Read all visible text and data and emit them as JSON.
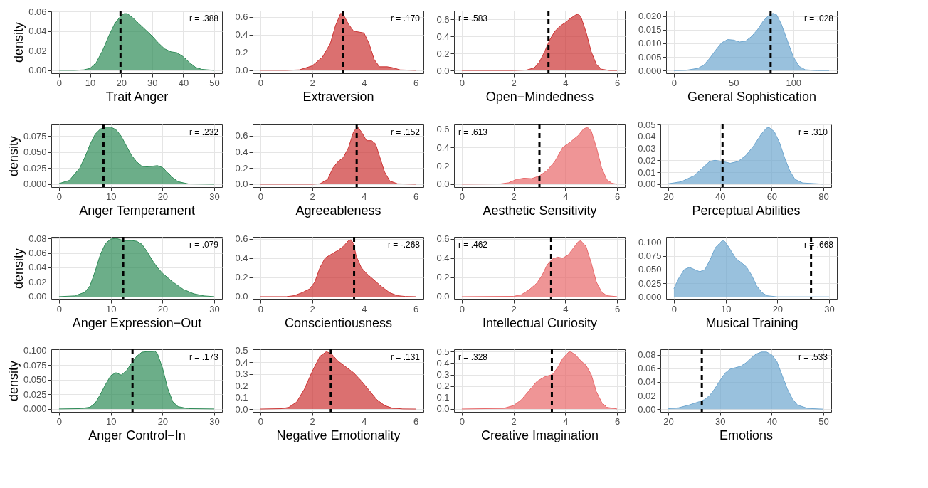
{
  "chart_data": [
    {
      "type": "area",
      "xlabel": "Trait Anger",
      "ylabel": "density",
      "color": "#2e8b57",
      "grid": true,
      "annotations": [
        "r = .388"
      ],
      "ref_lines": [
        {
          "axis": "x",
          "value": 19.8,
          "line_style": "dashed",
          "color": "#000000"
        }
      ],
      "xlim": [
        -2.5,
        52.5
      ],
      "xticks": [
        0,
        10,
        20,
        30,
        40,
        50
      ],
      "ylim": [
        -0.003,
        0.061
      ],
      "yticks": [
        {
          "value": 0,
          "label": "0.00"
        },
        {
          "value": 0.02,
          "label": "0.02"
        },
        {
          "value": 0.04,
          "label": "0.04"
        },
        {
          "value": 0.06,
          "label": "0.06"
        }
      ],
      "x": [
        0,
        5,
        8,
        10,
        12,
        14,
        16,
        18,
        20,
        21,
        22,
        24,
        26,
        28,
        30,
        32,
        34,
        36,
        38,
        40,
        42,
        44,
        46,
        50
      ],
      "values": [
        0,
        0,
        0.0005,
        0.002,
        0.008,
        0.02,
        0.035,
        0.048,
        0.056,
        0.058,
        0.058,
        0.053,
        0.047,
        0.041,
        0.035,
        0.028,
        0.022,
        0.019,
        0.018,
        0.014,
        0.008,
        0.003,
        0.001,
        0
      ]
    },
    {
      "type": "area",
      "xlabel": "Extraversion",
      "color": "#cc3333",
      "grid": true,
      "annotations": [
        "r = .170"
      ],
      "ref_lines": [
        {
          "axis": "x",
          "value": 3.2,
          "line_style": "dashed",
          "color": "#000000"
        }
      ],
      "xlim": [
        -0.3,
        6.3
      ],
      "xticks": [
        0,
        2,
        4,
        6
      ],
      "ylim": [
        -0.033,
        0.67
      ],
      "yticks": [
        {
          "value": 0,
          "label": "0.0"
        },
        {
          "value": 0.2,
          "label": "0.2"
        },
        {
          "value": 0.4,
          "label": "0.4"
        },
        {
          "value": 0.6,
          "label": "0.6"
        }
      ],
      "x": [
        0,
        1,
        1.5,
        2,
        2.4,
        2.7,
        2.9,
        3.1,
        3.2,
        3.4,
        3.6,
        3.8,
        4.0,
        4.2,
        4.4,
        4.6,
        4.9,
        5.1,
        5.4,
        6
      ],
      "values": [
        0,
        0,
        0.005,
        0.05,
        0.15,
        0.3,
        0.5,
        0.64,
        0.63,
        0.52,
        0.44,
        0.43,
        0.42,
        0.3,
        0.12,
        0.04,
        0.04,
        0.03,
        0.005,
        0
      ]
    },
    {
      "type": "area",
      "xlabel": "Open−Mindedness",
      "color": "#cc3333",
      "grid": true,
      "annotations": [
        "r = .583"
      ],
      "ref_lines": [
        {
          "axis": "x",
          "value": 3.35,
          "line_style": "dashed",
          "color": "#000000"
        }
      ],
      "xlim": [
        -0.3,
        6.3
      ],
      "xticks": [
        0,
        2,
        4,
        6
      ],
      "ylim": [
        -0.033,
        0.7
      ],
      "yticks": [
        {
          "value": 0,
          "label": "0.0"
        },
        {
          "value": 0.2,
          "label": "0.2"
        },
        {
          "value": 0.4,
          "label": "0.4"
        },
        {
          "value": 0.6,
          "label": "0.6"
        }
      ],
      "x": [
        0,
        2,
        2.5,
        2.8,
        3.0,
        3.2,
        3.4,
        3.6,
        3.8,
        4.0,
        4.2,
        4.4,
        4.5,
        4.6,
        4.8,
        5.0,
        5.2,
        5.4,
        5.7,
        6
      ],
      "values": [
        0,
        0,
        0.005,
        0.03,
        0.1,
        0.22,
        0.36,
        0.46,
        0.52,
        0.56,
        0.61,
        0.65,
        0.66,
        0.63,
        0.45,
        0.22,
        0.07,
        0.015,
        0,
        0
      ]
    },
    {
      "type": "area",
      "xlabel": "General Sophistication",
      "color": "#6ea6cf",
      "grid": true,
      "annotations": [
        "r = .028"
      ],
      "ref_lines": [
        {
          "axis": "x",
          "value": 81,
          "line_style": "dashed",
          "color": "#000000"
        }
      ],
      "xlim": [
        -6.5,
        136.5
      ],
      "xticks": [
        0,
        50,
        100
      ],
      "ylim": [
        -0.001,
        0.022
      ],
      "yticks": [
        {
          "value": 0,
          "label": "0.000"
        },
        {
          "value": 0.005,
          "label": "0.005"
        },
        {
          "value": 0.01,
          "label": "0.010"
        },
        {
          "value": 0.015,
          "label": "0.015"
        },
        {
          "value": 0.02,
          "label": "0.020"
        }
      ],
      "x": [
        0,
        10,
        20,
        25,
        30,
        35,
        40,
        45,
        50,
        55,
        60,
        65,
        70,
        75,
        80,
        83,
        86,
        90,
        95,
        100,
        105,
        110,
        120,
        130
      ],
      "values": [
        0,
        0.0001,
        0.0008,
        0.002,
        0.0045,
        0.0075,
        0.0102,
        0.0114,
        0.0112,
        0.0105,
        0.0108,
        0.0125,
        0.015,
        0.0183,
        0.0205,
        0.021,
        0.0205,
        0.017,
        0.011,
        0.005,
        0.0015,
        0.0003,
        0,
        0
      ]
    },
    {
      "type": "area",
      "xlabel": "Anger Temperament",
      "ylabel": "density",
      "color": "#2e8b57",
      "grid": true,
      "annotations": [
        "r = .232"
      ],
      "ref_lines": [
        {
          "axis": "x",
          "value": 8.6,
          "line_style": "dashed",
          "color": "#000000"
        }
      ],
      "xlim": [
        -1.5,
        31.5
      ],
      "xticks": [
        0,
        10,
        20,
        30
      ],
      "ylim": [
        -0.0045,
        0.093
      ],
      "yticks": [
        {
          "value": 0,
          "label": "0.000"
        },
        {
          "value": 0.025,
          "label": "0.025"
        },
        {
          "value": 0.05,
          "label": "0.050"
        },
        {
          "value": 0.075,
          "label": "0.075"
        }
      ],
      "x": [
        0,
        2,
        4,
        5,
        6,
        7,
        8,
        9,
        10,
        11,
        12,
        13,
        14,
        15,
        16,
        17,
        18,
        19,
        20,
        21,
        22,
        23,
        25,
        30
      ],
      "values": [
        0.001,
        0.006,
        0.025,
        0.042,
        0.062,
        0.078,
        0.086,
        0.089,
        0.089,
        0.085,
        0.075,
        0.06,
        0.045,
        0.035,
        0.028,
        0.027,
        0.028,
        0.029,
        0.026,
        0.018,
        0.01,
        0.004,
        0.0005,
        0
      ]
    },
    {
      "type": "area",
      "xlabel": "Agreeableness",
      "color": "#cc3333",
      "grid": true,
      "annotations": [
        "r = .152"
      ],
      "ref_lines": [
        {
          "axis": "x",
          "value": 3.72,
          "line_style": "dashed",
          "color": "#000000"
        }
      ],
      "xlim": [
        -0.3,
        6.3
      ],
      "xticks": [
        0,
        2,
        4,
        6
      ],
      "ylim": [
        -0.036,
        0.74
      ],
      "yticks": [
        {
          "value": 0,
          "label": "0.0"
        },
        {
          "value": 0.2,
          "label": "0.2"
        },
        {
          "value": 0.4,
          "label": "0.4"
        },
        {
          "value": 0.6,
          "label": "0.6"
        }
      ],
      "x": [
        0,
        2,
        2.3,
        2.6,
        2.8,
        3.0,
        3.2,
        3.4,
        3.6,
        3.75,
        3.9,
        4.1,
        4.3,
        4.45,
        4.6,
        4.8,
        5.0,
        5.3,
        6
      ],
      "values": [
        0,
        0,
        0.005,
        0.06,
        0.2,
        0.28,
        0.33,
        0.45,
        0.65,
        0.71,
        0.65,
        0.54,
        0.54,
        0.5,
        0.35,
        0.15,
        0.04,
        0.005,
        0
      ]
    },
    {
      "type": "area",
      "xlabel": "Aesthetic Sensitivity",
      "color": "#e8686a",
      "grid": true,
      "annotations": [
        "r = .613"
      ],
      "ref_lines": [
        {
          "axis": "x",
          "value": 3.0,
          "line_style": "dashed",
          "color": "#000000"
        }
      ],
      "xlim": [
        -0.3,
        6.3
      ],
      "xticks": [
        0,
        2,
        4,
        6
      ],
      "ylim": [
        -0.032,
        0.65
      ],
      "yticks": [
        {
          "value": 0,
          "label": "0.0"
        },
        {
          "value": 0.2,
          "label": "0.2"
        },
        {
          "value": 0.4,
          "label": "0.4"
        },
        {
          "value": 0.6,
          "label": "0.6"
        }
      ],
      "x": [
        0,
        1.5,
        1.8,
        2.1,
        2.4,
        2.7,
        3.0,
        3.3,
        3.6,
        3.9,
        4.2,
        4.5,
        4.7,
        4.85,
        5.0,
        5.2,
        5.4,
        5.6,
        5.8,
        6
      ],
      "values": [
        0,
        0.003,
        0.015,
        0.05,
        0.065,
        0.06,
        0.09,
        0.15,
        0.25,
        0.4,
        0.46,
        0.53,
        0.6,
        0.62,
        0.58,
        0.4,
        0.18,
        0.05,
        0.01,
        0
      ]
    },
    {
      "type": "area",
      "xlabel": "Perceptual Abilities",
      "color": "#6ea6cf",
      "grid": true,
      "annotations": [
        "r = .310"
      ],
      "ref_lines": [
        {
          "axis": "x",
          "value": 41,
          "line_style": "dashed",
          "color": "#000000"
        }
      ],
      "xlim": [
        17,
        83
      ],
      "xticks": [
        20,
        40,
        60,
        80
      ],
      "ylim": [
        -0.0025,
        0.05
      ],
      "yticks": [
        {
          "value": 0,
          "label": "0.00"
        },
        {
          "value": 0.01,
          "label": "0.01"
        },
        {
          "value": 0.02,
          "label": "0.02"
        },
        {
          "value": 0.03,
          "label": "0.03"
        },
        {
          "value": 0.04,
          "label": "0.04"
        },
        {
          "value": 0.05,
          "label": "0.05"
        }
      ],
      "x": [
        20,
        25,
        30,
        33,
        36,
        38,
        41,
        44,
        47,
        50,
        53,
        56,
        58,
        59,
        61,
        63,
        65,
        67,
        69,
        72,
        80
      ],
      "values": [
        0.0003,
        0.002,
        0.007,
        0.013,
        0.019,
        0.02,
        0.019,
        0.0175,
        0.019,
        0.024,
        0.032,
        0.042,
        0.047,
        0.0475,
        0.044,
        0.035,
        0.022,
        0.011,
        0.004,
        0.001,
        0
      ]
    },
    {
      "type": "area",
      "xlabel": "Anger Expression−Out",
      "ylabel": "density",
      "color": "#2e8b57",
      "grid": true,
      "annotations": [
        "r = .079"
      ],
      "ref_lines": [
        {
          "axis": "x",
          "value": 12.4,
          "line_style": "dashed",
          "color": "#000000"
        }
      ],
      "xlim": [
        -1.5,
        31.5
      ],
      "xticks": [
        0,
        10,
        20,
        30
      ],
      "ylim": [
        -0.004,
        0.082
      ],
      "yticks": [
        {
          "value": 0,
          "label": "0.00"
        },
        {
          "value": 0.02,
          "label": "0.02"
        },
        {
          "value": 0.04,
          "label": "0.04"
        },
        {
          "value": 0.06,
          "label": "0.06"
        },
        {
          "value": 0.08,
          "label": "0.08"
        }
      ],
      "x": [
        0,
        3,
        5,
        6,
        7,
        8,
        9,
        10,
        11,
        12,
        13,
        14,
        15,
        16,
        17,
        18,
        19,
        20,
        22,
        24,
        26,
        28,
        30
      ],
      "values": [
        0,
        0.001,
        0.006,
        0.015,
        0.035,
        0.058,
        0.073,
        0.079,
        0.08,
        0.078,
        0.077,
        0.077,
        0.076,
        0.072,
        0.062,
        0.05,
        0.04,
        0.032,
        0.02,
        0.01,
        0.004,
        0.001,
        0
      ]
    },
    {
      "type": "area",
      "xlabel": "Conscientiousness",
      "color": "#cc3333",
      "grid": true,
      "annotations": [
        "r = -.268"
      ],
      "ref_lines": [
        {
          "axis": "x",
          "value": 3.62,
          "line_style": "dashed",
          "color": "#000000"
        }
      ],
      "xlim": [
        -0.3,
        6.3
      ],
      "xticks": [
        0,
        2,
        4,
        6
      ],
      "ylim": [
        -0.03,
        0.62
      ],
      "yticks": [
        {
          "value": 0,
          "label": "0.0"
        },
        {
          "value": 0.2,
          "label": "0.2"
        },
        {
          "value": 0.4,
          "label": "0.4"
        },
        {
          "value": 0.6,
          "label": "0.6"
        }
      ],
      "x": [
        0,
        1,
        1.3,
        1.6,
        1.9,
        2.1,
        2.3,
        2.5,
        2.8,
        3.0,
        3.2,
        3.4,
        3.5,
        3.6,
        3.7,
        3.9,
        4.1,
        4.4,
        4.7,
        5.0,
        5.3,
        5.6,
        6
      ],
      "values": [
        0,
        0,
        0.01,
        0.04,
        0.08,
        0.15,
        0.3,
        0.4,
        0.45,
        0.48,
        0.52,
        0.58,
        0.59,
        0.55,
        0.42,
        0.3,
        0.24,
        0.17,
        0.1,
        0.04,
        0.01,
        0.002,
        0
      ]
    },
    {
      "type": "area",
      "xlabel": "Intellectual Curiosity",
      "color": "#e8686a",
      "grid": true,
      "annotations": [
        "r = .462"
      ],
      "ref_lines": [
        {
          "axis": "x",
          "value": 3.45,
          "line_style": "dashed",
          "color": "#000000"
        }
      ],
      "xlim": [
        -0.3,
        6.3
      ],
      "xticks": [
        0,
        2,
        4,
        6
      ],
      "ylim": [
        -0.03,
        0.62
      ],
      "yticks": [
        {
          "value": 0,
          "label": "0.0"
        },
        {
          "value": 0.2,
          "label": "0.2"
        },
        {
          "value": 0.4,
          "label": "0.4"
        },
        {
          "value": 0.6,
          "label": "0.6"
        }
      ],
      "x": [
        0,
        2,
        2.3,
        2.6,
        2.9,
        3.1,
        3.3,
        3.5,
        3.7,
        3.9,
        4.1,
        4.3,
        4.5,
        4.6,
        4.8,
        5.0,
        5.2,
        5.4,
        5.6,
        6
      ],
      "values": [
        0,
        0.003,
        0.02,
        0.07,
        0.14,
        0.22,
        0.33,
        0.39,
        0.41,
        0.4,
        0.43,
        0.5,
        0.57,
        0.58,
        0.52,
        0.35,
        0.15,
        0.05,
        0.01,
        0
      ]
    },
    {
      "type": "area",
      "xlabel": "Musical Training",
      "color": "#6ea6cf",
      "grid": true,
      "annotations": [
        "r = .668"
      ],
      "ref_lines": [
        {
          "axis": "x",
          "value": 26.5,
          "line_style": "dashed",
          "color": "#000000"
        }
      ],
      "xlim": [
        -1.5,
        31.5
      ],
      "xticks": [
        0,
        10,
        20,
        30
      ],
      "ylim": [
        -0.005,
        0.11
      ],
      "yticks": [
        {
          "value": 0,
          "label": "0.000"
        },
        {
          "value": 0.025,
          "label": "0.025"
        },
        {
          "value": 0.05,
          "label": "0.050"
        },
        {
          "value": 0.075,
          "label": "0.075"
        },
        {
          "value": 0.1,
          "label": "0.100"
        }
      ],
      "x": [
        0,
        1,
        2,
        3,
        4,
        5,
        6,
        7,
        8,
        9,
        9.5,
        10,
        11,
        12,
        13,
        14,
        15,
        16,
        17,
        18,
        20,
        30
      ],
      "values": [
        0.015,
        0.035,
        0.05,
        0.054,
        0.05,
        0.046,
        0.05,
        0.068,
        0.09,
        0.1,
        0.104,
        0.1,
        0.085,
        0.07,
        0.063,
        0.055,
        0.04,
        0.02,
        0.008,
        0.002,
        0,
        0
      ]
    },
    {
      "type": "area",
      "xlabel": "Anger Control−In",
      "ylabel": "density",
      "color": "#2e8b57",
      "grid": true,
      "annotations": [
        "r = .173"
      ],
      "ref_lines": [
        {
          "axis": "x",
          "value": 14.2,
          "line_style": "dashed",
          "color": "#000000"
        }
      ],
      "xlim": [
        -1.5,
        31.5
      ],
      "xticks": [
        0,
        10,
        20,
        30
      ],
      "ylim": [
        -0.005,
        0.102
      ],
      "yticks": [
        {
          "value": 0,
          "label": "0.000"
        },
        {
          "value": 0.025,
          "label": "0.025"
        },
        {
          "value": 0.05,
          "label": "0.050"
        },
        {
          "value": 0.075,
          "label": "0.075"
        },
        {
          "value": 0.1,
          "label": "0.100"
        }
      ],
      "x": [
        0,
        4,
        6,
        7,
        8,
        9,
        10,
        11,
        12,
        13,
        14,
        15,
        16,
        17,
        18,
        18.5,
        19,
        20,
        21,
        22,
        23,
        25,
        30
      ],
      "values": [
        0,
        0.0005,
        0.003,
        0.01,
        0.025,
        0.042,
        0.057,
        0.062,
        0.058,
        0.065,
        0.078,
        0.09,
        0.097,
        0.098,
        0.098,
        0.099,
        0.095,
        0.07,
        0.035,
        0.012,
        0.004,
        0.0005,
        0
      ]
    },
    {
      "type": "area",
      "xlabel": "Negative Emotionality",
      "color": "#cc3333",
      "grid": true,
      "annotations": [
        "r = .131"
      ],
      "ref_lines": [
        {
          "axis": "x",
          "value": 2.72,
          "line_style": "dashed",
          "color": "#000000"
        }
      ],
      "xlim": [
        -0.3,
        6.3
      ],
      "xticks": [
        0,
        2,
        4,
        6
      ],
      "ylim": [
        -0.024,
        0.51
      ],
      "yticks": [
        {
          "value": 0,
          "label": "0.0"
        },
        {
          "value": 0.1,
          "label": "0.1"
        },
        {
          "value": 0.2,
          "label": "0.2"
        },
        {
          "value": 0.3,
          "label": "0.3"
        },
        {
          "value": 0.4,
          "label": "0.4"
        },
        {
          "value": 0.5,
          "label": "0.5"
        }
      ],
      "x": [
        0,
        0.8,
        1.1,
        1.4,
        1.7,
        2.0,
        2.3,
        2.55,
        2.75,
        3.0,
        3.3,
        3.6,
        3.9,
        4.2,
        4.5,
        4.8,
        5.1,
        5.5,
        6
      ],
      "values": [
        0,
        0.003,
        0.015,
        0.06,
        0.17,
        0.32,
        0.45,
        0.49,
        0.47,
        0.41,
        0.36,
        0.31,
        0.24,
        0.16,
        0.08,
        0.03,
        0.008,
        0.001,
        0
      ]
    },
    {
      "type": "area",
      "xlabel": "Creative Imagination",
      "color": "#e8686a",
      "grid": true,
      "annotations": [
        "r = .328"
      ],
      "ref_lines": [
        {
          "axis": "x",
          "value": 3.48,
          "line_style": "dashed",
          "color": "#000000"
        }
      ],
      "xlim": [
        -0.3,
        6.3
      ],
      "xticks": [
        0,
        2,
        4,
        6
      ],
      "ylim": [
        -0.025,
        0.52
      ],
      "yticks": [
        {
          "value": 0,
          "label": "0.0"
        },
        {
          "value": 0.1,
          "label": "0.1"
        },
        {
          "value": 0.2,
          "label": "0.2"
        },
        {
          "value": 0.3,
          "label": "0.3"
        },
        {
          "value": 0.4,
          "label": "0.4"
        },
        {
          "value": 0.5,
          "label": "0.5"
        }
      ],
      "x": [
        0,
        1.6,
        2.0,
        2.3,
        2.6,
        2.9,
        3.2,
        3.5,
        3.7,
        3.9,
        4.1,
        4.2,
        4.4,
        4.6,
        4.8,
        5.0,
        5.2,
        5.4,
        5.6,
        6
      ],
      "values": [
        0,
        0.005,
        0.03,
        0.08,
        0.16,
        0.24,
        0.28,
        0.3,
        0.36,
        0.44,
        0.49,
        0.5,
        0.47,
        0.42,
        0.38,
        0.3,
        0.15,
        0.06,
        0.015,
        0
      ]
    },
    {
      "type": "area",
      "xlabel": "Emotions",
      "color": "#6ea6cf",
      "grid": true,
      "annotations": [
        "r = .533"
      ],
      "ref_lines": [
        {
          "axis": "x",
          "value": 26.5,
          "line_style": "dashed",
          "color": "#000000"
        }
      ],
      "xlim": [
        18.5,
        51.5
      ],
      "xticks": [
        20,
        30,
        40,
        50
      ],
      "ylim": [
        -0.004,
        0.088
      ],
      "yticks": [
        {
          "value": 0,
          "label": "0.00"
        },
        {
          "value": 0.02,
          "label": "0.02"
        },
        {
          "value": 0.04,
          "label": "0.04"
        },
        {
          "value": 0.06,
          "label": "0.06"
        },
        {
          "value": 0.08,
          "label": "0.08"
        }
      ],
      "x": [
        20,
        22,
        24,
        26,
        27,
        28,
        29,
        30,
        31,
        32,
        33,
        34,
        35,
        36,
        37,
        38,
        39,
        40,
        41,
        42,
        43,
        44,
        45,
        47,
        50
      ],
      "values": [
        0.0005,
        0.002,
        0.006,
        0.011,
        0.014,
        0.02,
        0.03,
        0.042,
        0.053,
        0.059,
        0.061,
        0.063,
        0.068,
        0.075,
        0.081,
        0.084,
        0.084,
        0.08,
        0.07,
        0.05,
        0.03,
        0.015,
        0.006,
        0.001,
        0
      ]
    }
  ]
}
